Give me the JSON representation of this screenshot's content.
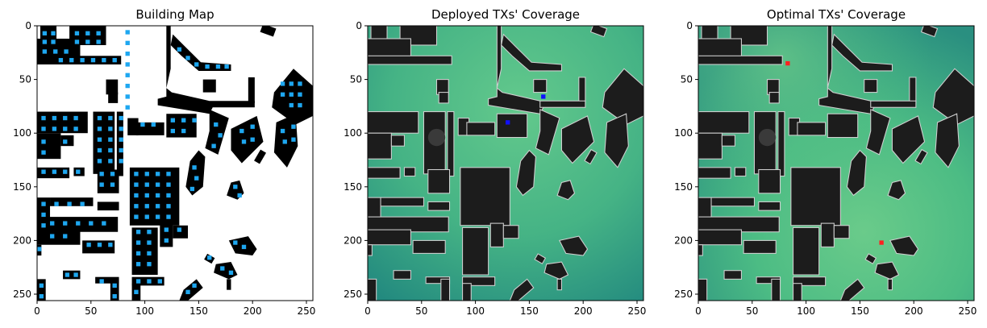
{
  "chart_data": [
    {
      "type": "heatmap",
      "title": "Building Map",
      "xlabel": "",
      "ylabel": "",
      "xlim": [
        0,
        256
      ],
      "ylim": [
        256,
        0
      ],
      "xticks": [
        0,
        50,
        100,
        150,
        200,
        250
      ],
      "yticks": [
        0,
        50,
        100,
        150,
        200,
        250
      ],
      "grid": false,
      "colors": {
        "background": "#ffffff",
        "building": "#000000",
        "markers_light": "#1ea7f0",
        "markers_dark": "#1a5fe0"
      }
    },
    {
      "type": "heatmap",
      "title": "Deployed TXs' Coverage",
      "xlabel": "",
      "ylabel": "",
      "xlim": [
        0,
        256
      ],
      "ylim": [
        256,
        0
      ],
      "xticks": [
        0,
        50,
        100,
        150,
        200,
        250
      ],
      "yticks": [
        0,
        50,
        100,
        150,
        200,
        250
      ],
      "grid": false,
      "transmitters": [
        {
          "x": 163,
          "y": 66,
          "color": "#1010ff"
        },
        {
          "x": 130,
          "y": 90,
          "color": "#1010ff"
        }
      ],
      "colors": {
        "coverage_high": "#5cc48a",
        "coverage_mid": "#3aa883",
        "coverage_low": "#1f7d7c",
        "building": "#1c1c1c"
      }
    },
    {
      "type": "heatmap",
      "title": "Optimal TXs' Coverage",
      "xlabel": "",
      "ylabel": "",
      "xlim": [
        0,
        256
      ],
      "ylim": [
        256,
        0
      ],
      "xticks": [
        0,
        50,
        100,
        150,
        200,
        250
      ],
      "yticks": [
        0,
        50,
        100,
        150,
        200,
        250
      ],
      "grid": false,
      "transmitters": [
        {
          "x": 83,
          "y": 35,
          "color": "#ff2020"
        },
        {
          "x": 170,
          "y": 202,
          "color": "#ff2020"
        }
      ],
      "colors": {
        "coverage_high": "#5cc48a",
        "coverage_mid": "#3aa883",
        "coverage_low": "#1f7d7c",
        "building": "#1c1c1c"
      }
    }
  ]
}
